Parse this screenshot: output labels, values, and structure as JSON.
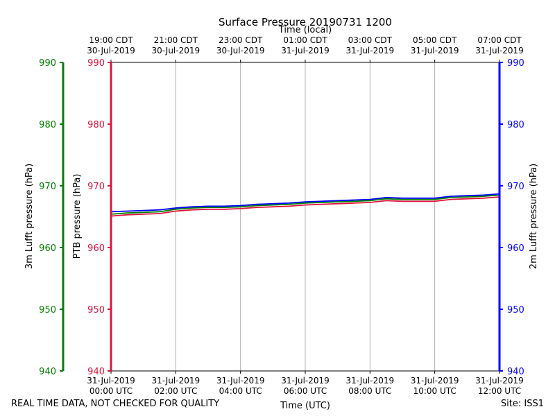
{
  "chart_data": {
    "type": "line",
    "title": "Surface Pressure 20190731 1200",
    "xlabel_bottom": "Time (UTC)",
    "xlabel_top": "Time (local)",
    "xlim_hours_utc": [
      0,
      12
    ],
    "bottom_ticks": [
      {
        "hour": 0,
        "line1": "31-Jul-2019",
        "line2": "00:00 UTC"
      },
      {
        "hour": 2,
        "line1": "31-Jul-2019",
        "line2": "02:00 UTC"
      },
      {
        "hour": 4,
        "line1": "31-Jul-2019",
        "line2": "04:00 UTC"
      },
      {
        "hour": 6,
        "line1": "31-Jul-2019",
        "line2": "06:00 UTC"
      },
      {
        "hour": 8,
        "line1": "31-Jul-2019",
        "line2": "08:00 UTC"
      },
      {
        "hour": 10,
        "line1": "31-Jul-2019",
        "line2": "10:00 UTC"
      },
      {
        "hour": 12,
        "line1": "31-Jul-2019",
        "line2": "12:00 UTC"
      }
    ],
    "top_ticks": [
      {
        "hour": 0,
        "line1": "19:00 CDT",
        "line2": "30-Jul-2019"
      },
      {
        "hour": 2,
        "line1": "21:00 CDT",
        "line2": "30-Jul-2019"
      },
      {
        "hour": 4,
        "line1": "23:00 CDT",
        "line2": "30-Jul-2019"
      },
      {
        "hour": 6,
        "line1": "01:00 CDT",
        "line2": "31-Jul-2019"
      },
      {
        "hour": 8,
        "line1": "03:00 CDT",
        "line2": "31-Jul-2019"
      },
      {
        "hour": 10,
        "line1": "05:00 CDT",
        "line2": "31-Jul-2019"
      },
      {
        "hour": 12,
        "line1": "07:00 CDT",
        "line2": "31-Jul-2019"
      }
    ],
    "ylim": [
      940,
      990
    ],
    "yticks": [
      940,
      950,
      960,
      970,
      980,
      990
    ],
    "axes": [
      {
        "name": "3m Lufft",
        "label": "3m Lufft pressure (hPa)",
        "color": "#008000"
      },
      {
        "name": "PTB",
        "label": "PTB pressure (hPa)",
        "color": "#dc143c"
      },
      {
        "name": "2m Lufft",
        "label": "2m Lufft pressure (hPa)",
        "color": "#0000ff"
      }
    ],
    "series": [
      {
        "name": "PTB",
        "color": "#dc143c",
        "x": [
          0,
          0.5,
          1,
          1.5,
          2,
          2.5,
          3,
          3.5,
          4,
          4.5,
          5,
          5.5,
          6,
          6.5,
          7,
          7.5,
          8,
          8.5,
          9,
          9.5,
          10,
          10.5,
          11,
          11.5,
          12
        ],
        "y": [
          965.1,
          965.3,
          965.4,
          965.5,
          965.9,
          966.1,
          966.2,
          966.2,
          966.3,
          966.5,
          966.6,
          966.7,
          966.9,
          967.0,
          967.1,
          967.2,
          967.3,
          967.6,
          967.5,
          967.5,
          967.5,
          967.8,
          967.9,
          968.0,
          968.2
        ]
      },
      {
        "name": "3m Lufft",
        "color": "#008000",
        "x": [
          0,
          0.5,
          1,
          1.5,
          2,
          2.5,
          3,
          3.5,
          4,
          4.5,
          5,
          5.5,
          6,
          6.5,
          7,
          7.5,
          8,
          8.5,
          9,
          9.5,
          10,
          10.5,
          11,
          11.5,
          12
        ],
        "y": [
          965.4,
          965.6,
          965.7,
          965.8,
          966.2,
          966.4,
          966.5,
          966.5,
          966.6,
          966.8,
          966.9,
          967.0,
          967.2,
          967.3,
          967.4,
          967.5,
          967.6,
          967.9,
          967.8,
          967.8,
          967.8,
          968.1,
          968.2,
          968.3,
          968.5
        ]
      },
      {
        "name": "2m Lufft",
        "color": "#0000ff",
        "x": [
          0,
          0.5,
          1,
          1.5,
          2,
          2.5,
          3,
          3.5,
          4,
          4.5,
          5,
          5.5,
          6,
          6.5,
          7,
          7.5,
          8,
          8.5,
          9,
          9.5,
          10,
          10.5,
          11,
          11.5,
          12
        ],
        "y": [
          965.8,
          965.9,
          966.0,
          966.1,
          966.4,
          966.6,
          966.7,
          966.7,
          966.8,
          967.0,
          967.1,
          967.2,
          967.4,
          967.5,
          967.6,
          967.7,
          967.8,
          968.1,
          968.0,
          968.0,
          968.0,
          968.3,
          968.4,
          968.5,
          968.7
        ]
      }
    ]
  },
  "footer": {
    "left": "REAL TIME DATA, NOT CHECKED FOR QUALITY",
    "right": "Site: ISS1"
  }
}
